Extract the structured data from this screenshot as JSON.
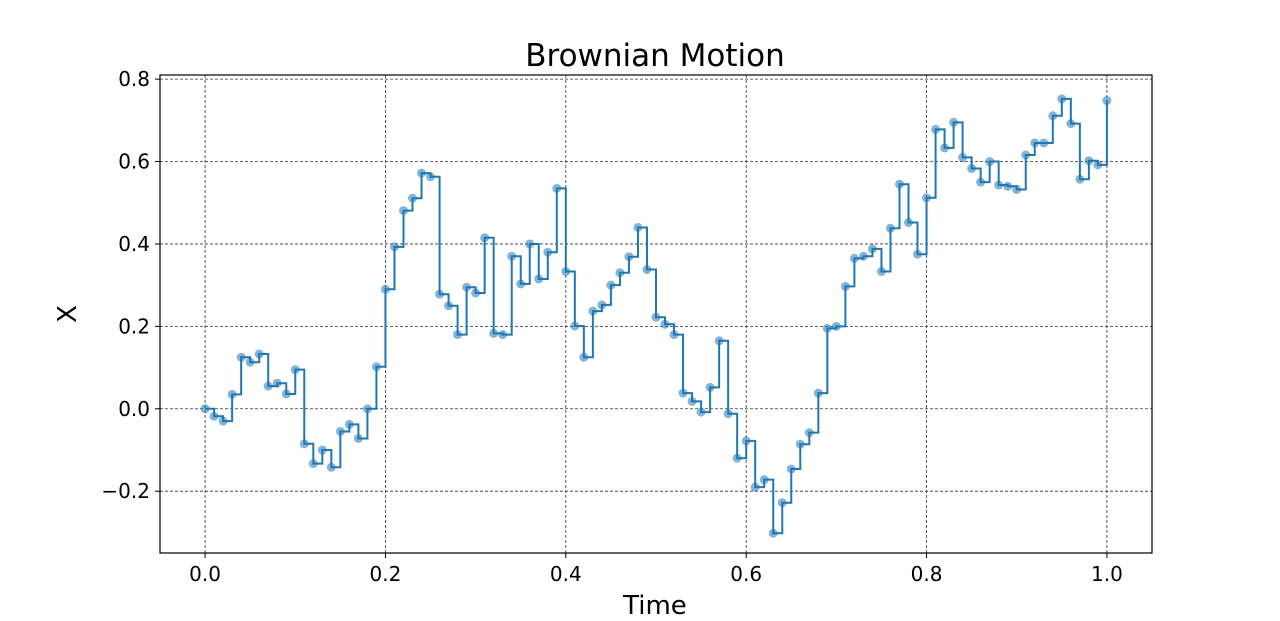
{
  "chart_data": {
    "type": "line",
    "title": "Brownian Motion",
    "xlabel": "Time",
    "ylabel": "X",
    "xlim": [
      -0.05,
      1.05
    ],
    "ylim": [
      -0.35,
      0.81
    ],
    "xticks": [
      0.0,
      0.2,
      0.4,
      0.6,
      0.8,
      1.0
    ],
    "xtick_labels": [
      "0.0",
      "0.2",
      "0.4",
      "0.6",
      "0.8",
      "1.0"
    ],
    "yticks": [
      -0.2,
      0.0,
      0.2,
      0.4,
      0.6,
      0.8
    ],
    "ytick_labels": [
      "−0.2",
      "0.0",
      "0.2",
      "0.4",
      "0.6",
      "0.8"
    ],
    "grid": true,
    "grid_style": "dashed",
    "line_color": "#1f77b4",
    "marker_color": "#1f77b4",
    "step": "post",
    "series": [
      {
        "x": [
          0.0,
          0.01,
          0.02,
          0.03,
          0.04,
          0.05,
          0.06,
          0.07,
          0.08,
          0.09,
          0.1,
          0.11,
          0.12,
          0.13,
          0.14,
          0.15,
          0.16,
          0.17,
          0.18,
          0.19,
          0.2,
          0.21,
          0.22,
          0.23,
          0.24,
          0.25,
          0.26,
          0.27,
          0.28,
          0.29,
          0.3,
          0.31,
          0.32,
          0.33,
          0.34,
          0.35,
          0.36,
          0.37,
          0.38,
          0.39,
          0.4,
          0.41,
          0.42,
          0.43,
          0.44,
          0.45,
          0.46,
          0.47,
          0.48,
          0.49,
          0.5,
          0.51,
          0.52,
          0.53,
          0.54,
          0.55,
          0.56,
          0.57,
          0.58,
          0.59,
          0.6,
          0.61,
          0.62,
          0.63,
          0.64,
          0.65,
          0.66,
          0.67,
          0.68,
          0.69,
          0.7,
          0.71,
          0.72,
          0.73,
          0.74,
          0.75,
          0.76,
          0.77,
          0.78,
          0.79,
          0.8,
          0.81,
          0.82,
          0.83,
          0.84,
          0.85,
          0.86,
          0.87,
          0.88,
          0.89,
          0.9,
          0.91,
          0.92,
          0.93,
          0.94,
          0.95,
          0.96,
          0.97,
          0.98,
          0.99,
          1.0
        ],
        "y": [
          0.0,
          -0.018,
          -0.03,
          0.035,
          0.125,
          0.113,
          0.133,
          0.055,
          0.062,
          0.036,
          0.095,
          -0.085,
          -0.133,
          -0.1,
          -0.142,
          -0.055,
          -0.038,
          -0.072,
          0.0,
          0.102,
          0.29,
          0.393,
          0.481,
          0.511,
          0.572,
          0.563,
          0.278,
          0.25,
          0.18,
          0.295,
          0.281,
          0.415,
          0.183,
          0.18,
          0.37,
          0.303,
          0.4,
          0.315,
          0.38,
          0.535,
          0.333,
          0.201,
          0.125,
          0.237,
          0.252,
          0.3,
          0.33,
          0.369,
          0.44,
          0.338,
          0.222,
          0.205,
          0.18,
          0.038,
          0.018,
          -0.008,
          0.052,
          0.165,
          -0.012,
          -0.12,
          -0.078,
          -0.19,
          -0.172,
          -0.302,
          -0.228,
          -0.146,
          -0.086,
          -0.058,
          0.038,
          0.195,
          0.2,
          0.297,
          0.365,
          0.37,
          0.388,
          0.333,
          0.438,
          0.545,
          0.452,
          0.375,
          0.512,
          0.678,
          0.633,
          0.695,
          0.61,
          0.583,
          0.55,
          0.6,
          0.543,
          0.54,
          0.532,
          0.616,
          0.645,
          0.645,
          0.711,
          0.752,
          0.692,
          0.557,
          0.602,
          0.592,
          0.748
        ]
      }
    ]
  }
}
